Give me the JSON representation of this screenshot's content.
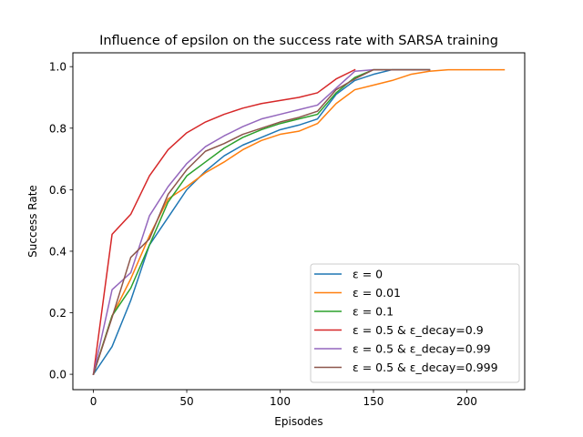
{
  "chart_data": {
    "type": "line",
    "title": "Influence of epsilon on the success rate with SARSA training",
    "xlabel": "Episodes",
    "ylabel": "Success Rate",
    "xlim": [
      -11,
      231
    ],
    "ylim": [
      -0.05,
      1.045
    ],
    "x_ticks": [
      0,
      50,
      100,
      150,
      200
    ],
    "y_ticks": [
      0.0,
      0.2,
      0.4,
      0.6,
      0.8,
      1.0
    ],
    "grid": false,
    "legend_placement": "lower right",
    "series": [
      {
        "name": "ε = 0",
        "color": "#1f77b4",
        "x": [
          0,
          10,
          20,
          30,
          40,
          50,
          60,
          70,
          80,
          90,
          100,
          110,
          120,
          130,
          140,
          150,
          160,
          170,
          180
        ],
        "values": [
          0.0,
          0.09,
          0.24,
          0.42,
          0.51,
          0.6,
          0.66,
          0.71,
          0.745,
          0.77,
          0.795,
          0.81,
          0.83,
          0.91,
          0.955,
          0.975,
          0.99,
          0.99,
          0.99
        ]
      },
      {
        "name": "ε = 0.01",
        "color": "#ff7f0e",
        "x": [
          0,
          10,
          20,
          30,
          40,
          50,
          60,
          70,
          80,
          90,
          100,
          110,
          120,
          130,
          140,
          150,
          160,
          170,
          180,
          190,
          200,
          210,
          220
        ],
        "values": [
          0.0,
          0.19,
          0.31,
          0.45,
          0.57,
          0.61,
          0.655,
          0.69,
          0.73,
          0.76,
          0.78,
          0.79,
          0.815,
          0.88,
          0.925,
          0.94,
          0.955,
          0.975,
          0.985,
          0.99,
          0.99,
          0.99,
          0.99
        ]
      },
      {
        "name": "ε = 0.1",
        "color": "#2ca02c",
        "x": [
          0,
          10,
          20,
          30,
          40,
          50,
          60,
          70,
          80,
          90,
          100,
          110,
          120,
          130,
          140,
          150,
          160,
          170,
          180
        ],
        "values": [
          0.0,
          0.19,
          0.28,
          0.42,
          0.56,
          0.645,
          0.69,
          0.735,
          0.77,
          0.795,
          0.815,
          0.83,
          0.845,
          0.915,
          0.965,
          0.99,
          0.99,
          0.99,
          0.99
        ]
      },
      {
        "name": "ε = 0.5 & ε_decay=0.9",
        "color": "#d62728",
        "x": [
          0,
          10,
          20,
          30,
          40,
          50,
          60,
          70,
          80,
          90,
          100,
          110,
          120,
          130,
          140
        ],
        "values": [
          0.0,
          0.455,
          0.52,
          0.645,
          0.73,
          0.785,
          0.82,
          0.845,
          0.865,
          0.88,
          0.89,
          0.9,
          0.915,
          0.96,
          0.99
        ]
      },
      {
        "name": "ε = 0.5 & ε_decay=0.99",
        "color": "#9467bd",
        "x": [
          0,
          10,
          20,
          30,
          40,
          50,
          60,
          70,
          80,
          90,
          100,
          110,
          120,
          130,
          140,
          150,
          160,
          170,
          180
        ],
        "values": [
          0.0,
          0.275,
          0.33,
          0.515,
          0.61,
          0.685,
          0.74,
          0.775,
          0.805,
          0.83,
          0.845,
          0.86,
          0.875,
          0.93,
          0.985,
          0.99,
          0.99,
          0.99,
          0.99
        ]
      },
      {
        "name": "ε = 0.5 & ε_decay=0.999",
        "color": "#8c564b",
        "x": [
          0,
          10,
          20,
          30,
          40,
          50,
          60,
          70,
          80,
          90,
          100,
          110,
          120,
          130,
          140,
          150,
          160,
          170,
          180
        ],
        "values": [
          0.0,
          0.185,
          0.38,
          0.44,
          0.585,
          0.665,
          0.725,
          0.75,
          0.78,
          0.8,
          0.82,
          0.835,
          0.855,
          0.925,
          0.96,
          0.99,
          0.99,
          0.99,
          0.99
        ]
      }
    ]
  }
}
